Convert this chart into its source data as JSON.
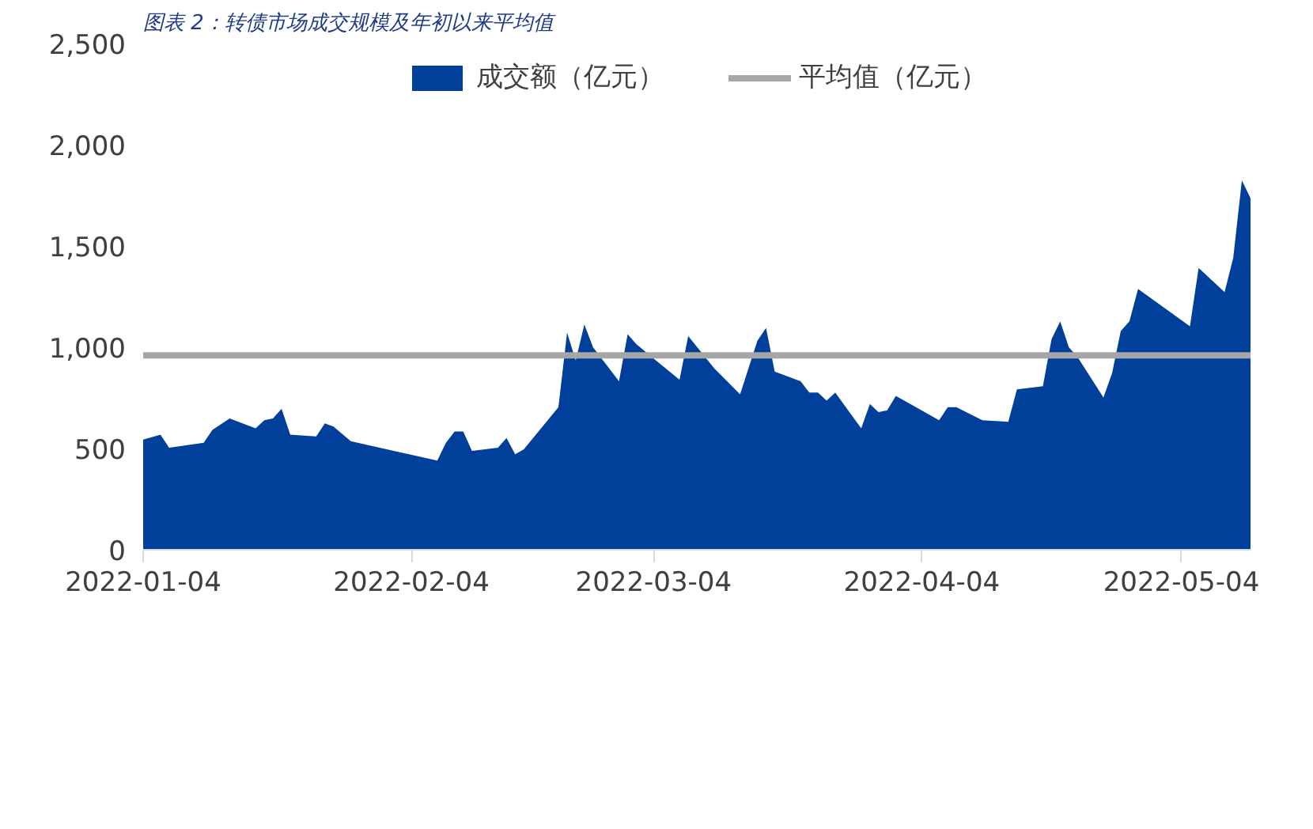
{
  "chart_data": {
    "type": "area",
    "title": "图表 2：转债市场成交规模及年初以来平均值",
    "x": [
      "2022-01-04",
      "2022-01-06",
      "2022-01-07",
      "2022-01-11",
      "2022-01-12",
      "2022-01-14",
      "2022-01-17",
      "2022-01-18",
      "2022-01-19",
      "2022-01-20",
      "2022-01-21",
      "2022-01-24",
      "2022-01-25",
      "2022-01-26",
      "2022-01-28",
      "2022-02-07",
      "2022-02-08",
      "2022-02-09",
      "2022-02-10",
      "2022-02-11",
      "2022-02-14",
      "2022-02-15",
      "2022-02-16",
      "2022-02-17",
      "2022-02-21",
      "2022-02-22",
      "2022-02-23",
      "2022-02-24",
      "2022-02-25",
      "2022-02-28",
      "2022-03-01",
      "2022-03-02",
      "2022-03-04",
      "2022-03-07",
      "2022-03-08",
      "2022-03-11",
      "2022-03-14",
      "2022-03-16",
      "2022-03-17",
      "2022-03-18",
      "2022-03-21",
      "2022-03-22",
      "2022-03-23",
      "2022-03-24",
      "2022-03-25",
      "2022-03-28",
      "2022-03-29",
      "2022-03-30",
      "2022-03-31",
      "2022-04-01",
      "2022-04-06",
      "2022-04-07",
      "2022-04-08",
      "2022-04-11",
      "2022-04-14",
      "2022-04-15",
      "2022-04-18",
      "2022-04-19",
      "2022-04-20",
      "2022-04-21",
      "2022-04-22",
      "2022-04-25",
      "2022-04-26",
      "2022-04-27",
      "2022-04-28",
      "2022-04-29",
      "2022-05-05",
      "2022-05-06",
      "2022-05-09",
      "2022-05-10",
      "2022-05-11",
      "2022-05-12"
    ],
    "series": [
      {
        "name": "成交额（亿元）",
        "color": "#00409a",
        "values": [
          544,
          568,
          504,
          528,
          592,
          648,
          600,
          640,
          648,
          696,
          568,
          560,
          624,
          608,
          536,
          440,
          528,
          584,
          584,
          488,
          504,
          552,
          472,
          496,
          704,
          1072,
          936,
          1112,
          1000,
          832,
          1064,
          1016,
          944,
          840,
          1056,
          896,
          768,
          1032,
          1096,
          880,
          832,
          776,
          776,
          736,
          776,
          600,
          720,
          680,
          688,
          760,
          640,
          704,
          704,
          640,
          632,
          792,
          808,
          1040,
          1128,
          1000,
          952,
          752,
          872,
          1080,
          1128,
          1288,
          1104,
          1392,
          1272,
          1440,
          1824,
          1736
        ]
      },
      {
        "name": "平均值（亿元）",
        "type": "line",
        "color": "#a6a6a6",
        "x": [
          "2022-01-04",
          "2022-05-12"
        ],
        "values": [
          960,
          960
        ]
      }
    ],
    "xlim": [
      "2022-01-04",
      "2022-05-12"
    ],
    "xticks": [
      "2022-01-04",
      "2022-02-04",
      "2022-03-04",
      "2022-04-04",
      "2022-05-04"
    ],
    "ylim": [
      0,
      2500
    ],
    "yticks": [
      {
        "value": 0,
        "label": "0"
      },
      {
        "value": 500,
        "label": "500"
      },
      {
        "value": 1000,
        "label": "1,000"
      },
      {
        "value": 1500,
        "label": "1,500"
      },
      {
        "value": 2000,
        "label": "2,000"
      },
      {
        "value": 2500,
        "label": "2,500"
      }
    ],
    "grid": false,
    "legend": "top"
  }
}
